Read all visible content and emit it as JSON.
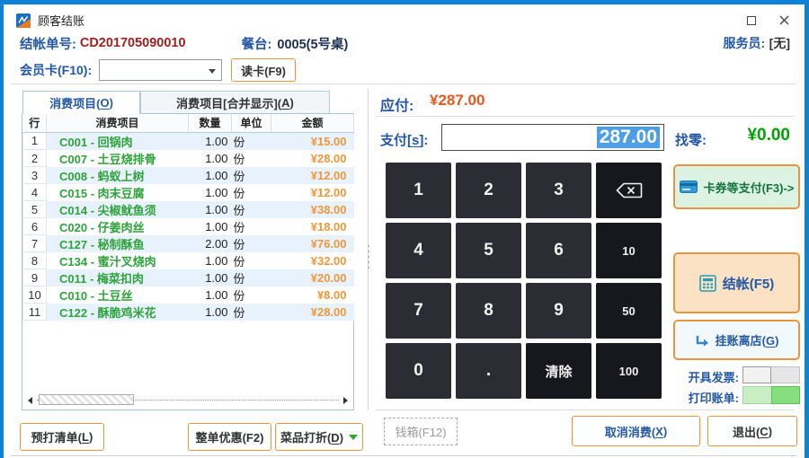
{
  "titlebar": {
    "title": "顾客结账"
  },
  "header": {
    "bill_label": "结帐单号:",
    "bill_no": "CD201705090010",
    "table_label": "餐台:",
    "table_no": "0005(5号桌)",
    "waiter_label": "服务员:",
    "waiter_value": "[无]",
    "member_label": "会员卡(F10):",
    "member_value": "",
    "read_card": "读卡(F9)"
  },
  "tabs": {
    "items": [
      {
        "label": "消费项目(O)",
        "active": true
      },
      {
        "label": "消费项目[合并显示](A)",
        "active": false
      }
    ]
  },
  "items_table": {
    "headers": [
      "行",
      "消费项目",
      "数量",
      "单位",
      "金额"
    ],
    "rows": [
      {
        "no": "1",
        "item": "C001 - 回锅肉",
        "qty": "1.00",
        "unit": "份",
        "amount": "¥15.00"
      },
      {
        "no": "2",
        "item": "C007 - 土豆烧排骨",
        "qty": "1.00",
        "unit": "份",
        "amount": "¥28.00"
      },
      {
        "no": "3",
        "item": "C008 - 蚂蚁上树",
        "qty": "1.00",
        "unit": "份",
        "amount": "¥12.00"
      },
      {
        "no": "4",
        "item": "C015 - 肉末豆腐",
        "qty": "1.00",
        "unit": "份",
        "amount": "¥12.00"
      },
      {
        "no": "5",
        "item": "C014 - 尖椒鱿鱼须",
        "qty": "1.00",
        "unit": "份",
        "amount": "¥38.00"
      },
      {
        "no": "6",
        "item": "C020 - 仔姜肉丝",
        "qty": "1.00",
        "unit": "份",
        "amount": "¥18.00"
      },
      {
        "no": "7",
        "item": "C127 - 秘制酥鱼",
        "qty": "2.00",
        "unit": "份",
        "amount": "¥76.00"
      },
      {
        "no": "8",
        "item": "C134 - 蜜汁叉烧肉",
        "qty": "1.00",
        "unit": "份",
        "amount": "¥32.00"
      },
      {
        "no": "9",
        "item": "C011 - 梅菜扣肉",
        "qty": "1.00",
        "unit": "份",
        "amount": "¥20.00"
      },
      {
        "no": "10",
        "item": "C010 - 土豆丝",
        "qty": "1.00",
        "unit": "份",
        "amount": "¥8.00"
      },
      {
        "no": "11",
        "item": "C122 - 酥脆鸡米花",
        "qty": "1.00",
        "unit": "份",
        "amount": "¥28.00"
      }
    ]
  },
  "left_buttons": {
    "preprint": "预打清单(L)",
    "discount_all": "整单优惠(F2)",
    "discount_item": "菜品打折(D)"
  },
  "payment": {
    "due_label": "应付:",
    "due_value": "¥287.00",
    "pay_label": "支付[s]:",
    "pay_value": "287.00",
    "change_label": "找零:",
    "change_value": "¥0.00"
  },
  "keypad": {
    "rows": [
      [
        {
          "label": "1"
        },
        {
          "label": "2"
        },
        {
          "label": "3"
        },
        {
          "icon": "backspace-icon",
          "name": "key-backspace",
          "dark": true
        }
      ],
      [
        {
          "label": "4"
        },
        {
          "label": "5"
        },
        {
          "label": "6"
        },
        {
          "label": "10",
          "dark": true,
          "small": true
        }
      ],
      [
        {
          "label": "7"
        },
        {
          "label": "8"
        },
        {
          "label": "9"
        },
        {
          "label": "50",
          "dark": true,
          "small": true
        }
      ],
      [
        {
          "label": "0"
        },
        {
          "label": "."
        },
        {
          "label": "清除",
          "name": "key-clear",
          "dark": true,
          "mid": true
        },
        {
          "label": "100",
          "dark": true,
          "small": true
        }
      ]
    ]
  },
  "side_actions": {
    "coupon": "卡券等支付(F3)->",
    "settle": "结帐(F5)",
    "credit": "挂账离店(G)",
    "invoice_label": "开具发票:",
    "print_label": "打印账单:"
  },
  "bottom_actions": {
    "drawer": "钱箱(F12)",
    "cancel": "取消消费(X)",
    "exit": "退出(C)"
  },
  "colors": {
    "frame_blue": "#0c83d7",
    "label_blue": "#2458a5",
    "bill_red": "#a01f1f",
    "item_green": "#2fa33c",
    "amount_orange": "#f0973a",
    "button_border_orange": "#e9953f",
    "due_orange": "#e8581c",
    "change_green": "#00a300",
    "key_dark": "#2c2c34",
    "key_darker": "#17171e",
    "selection_blue": "#4c9ee8"
  }
}
